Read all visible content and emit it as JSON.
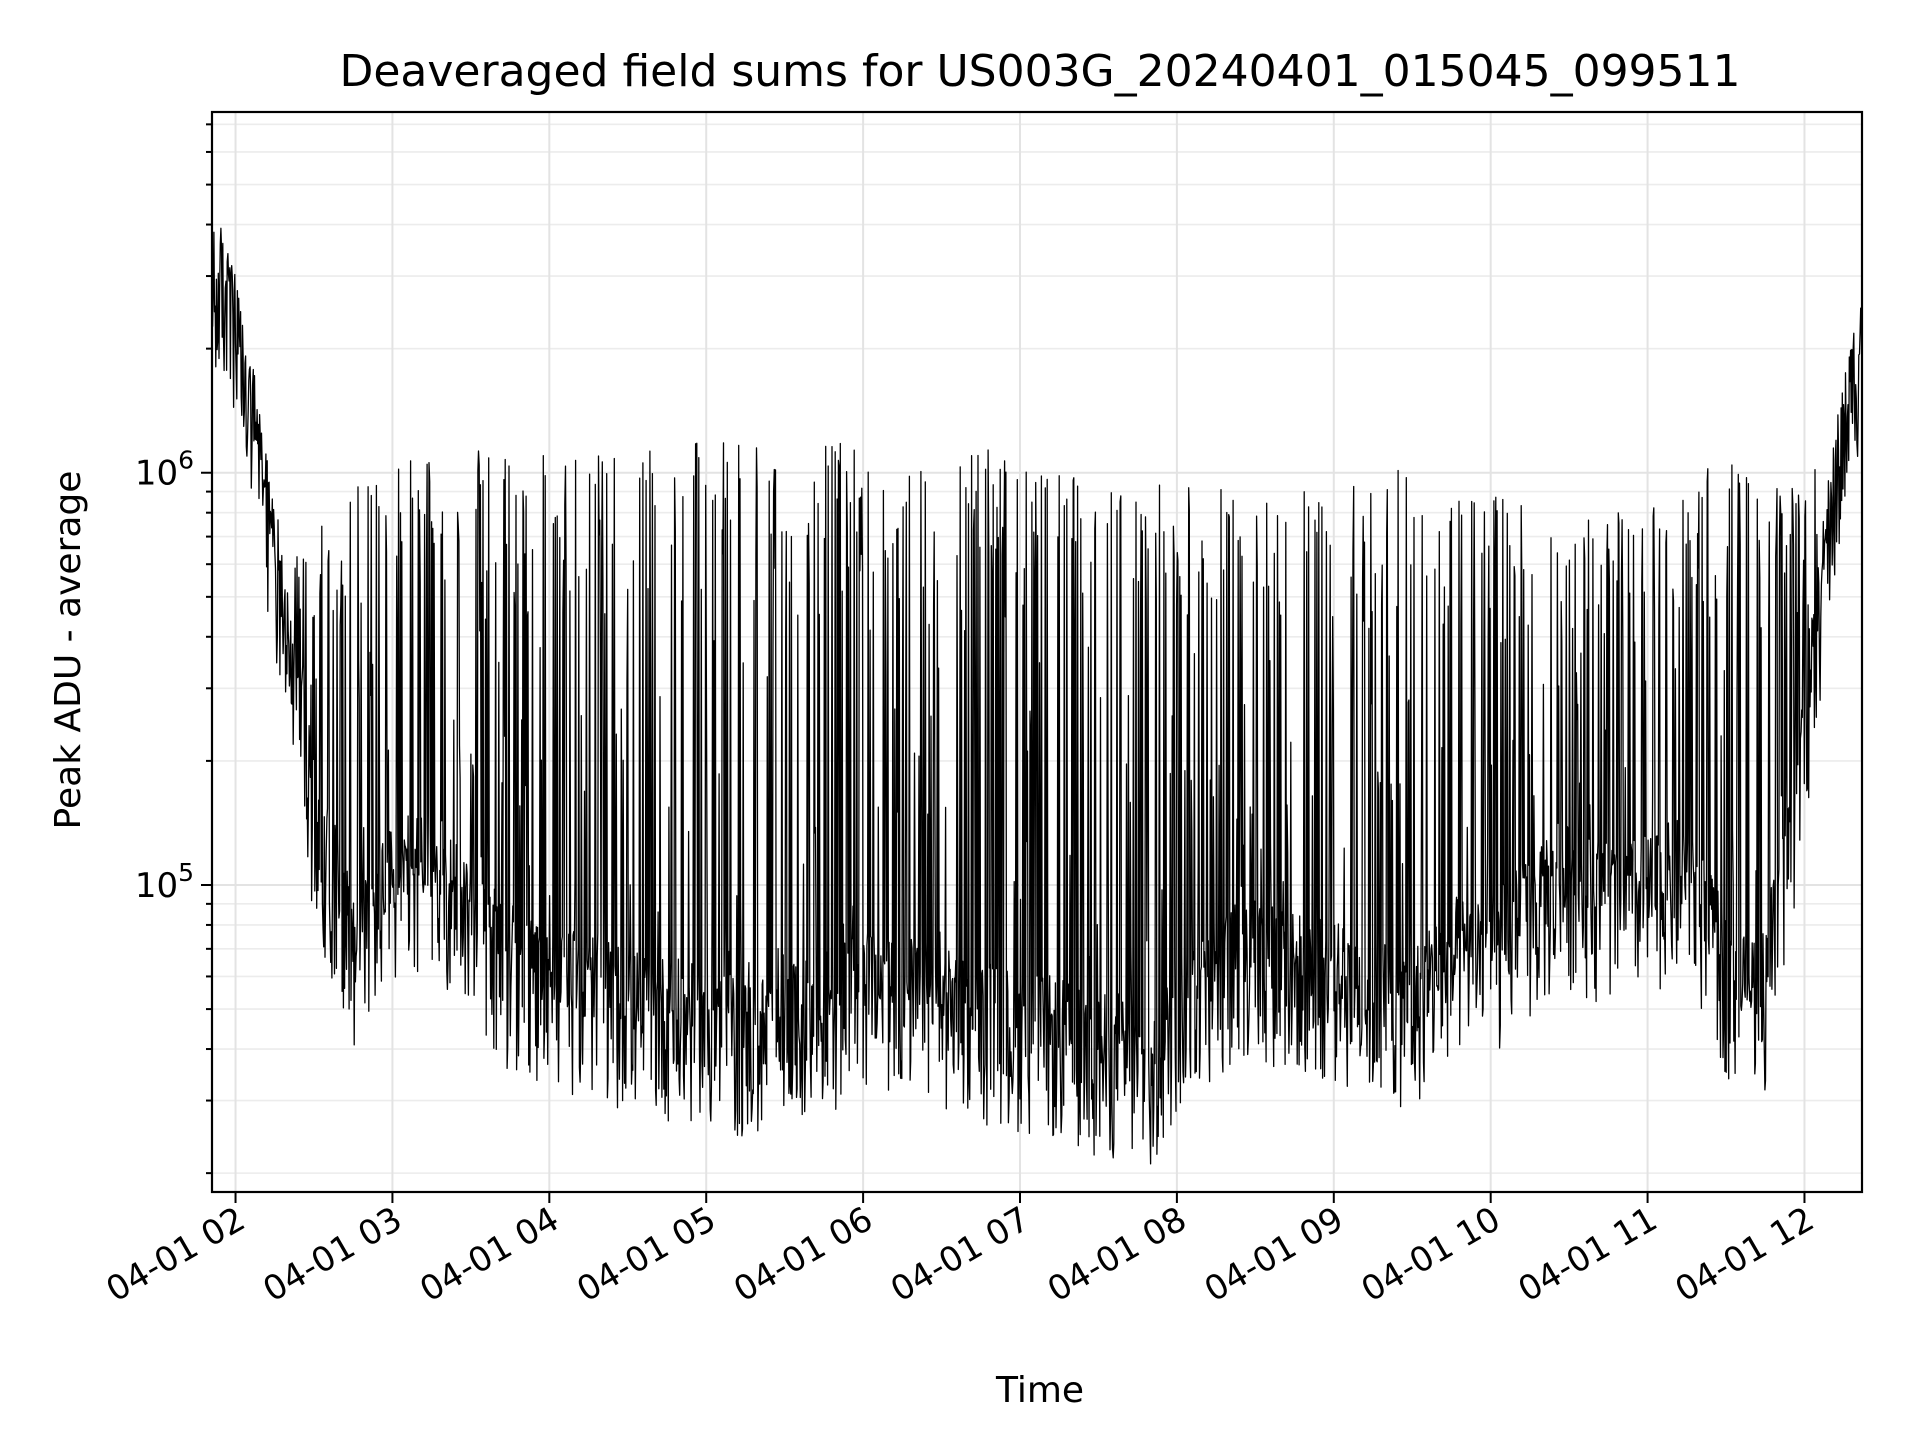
{
  "chart_data": {
    "type": "line",
    "title": "Deaveraged field sums for US003G_20240401_015045_099511",
    "xlabel": "Time",
    "ylabel": "Peak ADU - average",
    "y_scale": "log",
    "ylim": [
      18000,
      7500000
    ],
    "xlim": [
      "2024-04-01 01:51",
      "2024-04-01 12:22"
    ],
    "grid": true,
    "line_color": "#000000",
    "x_tick_labels": [
      "04-01 02",
      "04-01 03",
      "04-01 04",
      "04-01 05",
      "04-01 06",
      "04-01 07",
      "04-01 08",
      "04-01 09",
      "04-01 10",
      "04-01 11",
      "04-01 12"
    ],
    "x_ticks": [
      "2024-04-01 02:00",
      "2024-04-01 03:00",
      "2024-04-01 04:00",
      "2024-04-01 05:00",
      "2024-04-01 06:00",
      "2024-04-01 07:00",
      "2024-04-01 08:00",
      "2024-04-01 09:00",
      "2024-04-01 10:00",
      "2024-04-01 11:00",
      "2024-04-01 12:00"
    ],
    "y_ticks": [
      {
        "value": 100000,
        "base": "10",
        "exp": "5"
      },
      {
        "value": 1000000,
        "base": "10",
        "exp": "6"
      }
    ],
    "series": [
      {
        "x": [
          "2024-04-01 01:51",
          "2024-04-01 01:55",
          "2024-04-01 02:00",
          "2024-04-01 02:10",
          "2024-04-01 02:20",
          "2024-04-01 02:30",
          "2024-04-01 02:45",
          "2024-04-01 03:00",
          "2024-04-01 03:15",
          "2024-04-01 03:30",
          "2024-04-01 03:45",
          "2024-04-01 04:00",
          "2024-04-01 04:15",
          "2024-04-01 04:30",
          "2024-04-01 04:45",
          "2024-04-01 05:00",
          "2024-04-01 05:15",
          "2024-04-01 05:30",
          "2024-04-01 05:45",
          "2024-04-01 06:00",
          "2024-04-01 06:15",
          "2024-04-01 06:30",
          "2024-04-01 06:45",
          "2024-04-01 07:00",
          "2024-04-01 07:15",
          "2024-04-01 07:30",
          "2024-04-01 07:45",
          "2024-04-01 07:50",
          "2024-04-01 08:00",
          "2024-04-01 08:15",
          "2024-04-01 08:30",
          "2024-04-01 08:45",
          "2024-04-01 09:00",
          "2024-04-01 09:15",
          "2024-04-01 09:30",
          "2024-04-01 09:45",
          "2024-04-01 10:00",
          "2024-04-01 10:15",
          "2024-04-01 10:30",
          "2024-04-01 10:45",
          "2024-04-01 11:00",
          "2024-04-01 11:15",
          "2024-04-01 11:30",
          "2024-04-01 11:45",
          "2024-04-01 12:00",
          "2024-04-01 12:10",
          "2024-04-01 12:22"
        ],
        "base": [
          2300000,
          2600000,
          1900000,
          900000,
          350000,
          130000,
          65000,
          90000,
          100000,
          75000,
          55000,
          50000,
          50000,
          45000,
          43000,
          40000,
          38000,
          40000,
          44000,
          50000,
          50000,
          45000,
          42000,
          40000,
          38000,
          35000,
          33000,
          28000,
          45000,
          55000,
          60000,
          55000,
          52000,
          48000,
          45000,
          60000,
          60000,
          75000,
          90000,
          80000,
          85000,
          95000,
          55000,
          50000,
          200000,
          700000,
          2000000
        ],
        "peaks": [
          3800000,
          4200000,
          3000000,
          1200000,
          600000,
          700000,
          1000000,
          1100000,
          1100000,
          1150000,
          1100000,
          1150000,
          1100000,
          1100000,
          1150000,
          1200000,
          1200000,
          1200000,
          1200000,
          1150000,
          1050000,
          1050000,
          1200000,
          1050000,
          1000000,
          950000,
          950000,
          950000,
          950000,
          950000,
          950000,
          950000,
          950000,
          950000,
          1050000,
          850000,
          950000,
          900000,
          800000,
          800000,
          800000,
          1000000,
          1100000,
          900000,
          1000000,
          1200000,
          2800000
        ]
      }
    ]
  }
}
